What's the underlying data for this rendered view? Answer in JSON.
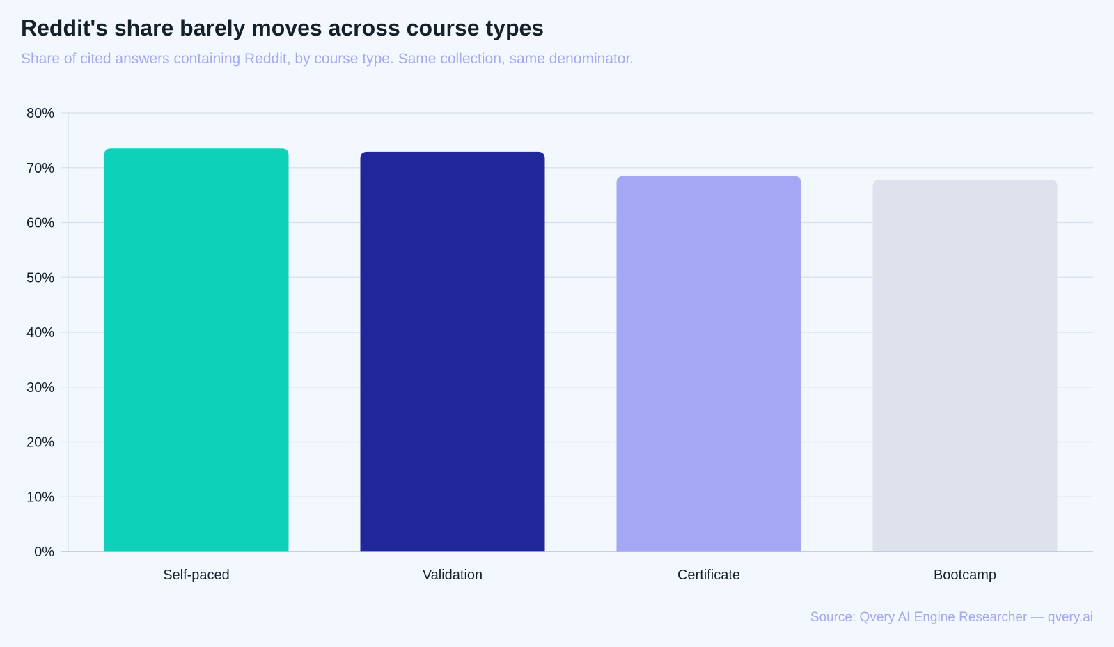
{
  "title": "Reddit's share barely moves across course types",
  "subtitle": "Share of cited answers containing Reddit, by course type. Same collection, same denominator.",
  "source": "Source: Qvery AI Engine Researcher — qvery.ai",
  "colors": {
    "background": "#f3f7fe",
    "grid": "#dde3ee",
    "axis": "#b9bfd6",
    "title": "#14202a",
    "subtitle": "#a4a8f0"
  },
  "chart_data": {
    "type": "bar",
    "categories": [
      "Self-paced",
      "Validation",
      "Certificate",
      "Bootcamp"
    ],
    "values": [
      73.5,
      72.9,
      68.5,
      67.8
    ],
    "bar_colors": [
      "#0dd1b9",
      "#20279a",
      "#a4a8f4",
      "#dde2ec"
    ],
    "ylim": [
      0,
      80
    ],
    "yticks": [
      0,
      10,
      20,
      30,
      40,
      50,
      60,
      70,
      80
    ],
    "ytick_labels": [
      "0%",
      "10%",
      "20%",
      "30%",
      "40%",
      "50%",
      "60%",
      "70%",
      "80%"
    ],
    "grid": true,
    "legend": "none",
    "xlabel": "",
    "ylabel": ""
  }
}
